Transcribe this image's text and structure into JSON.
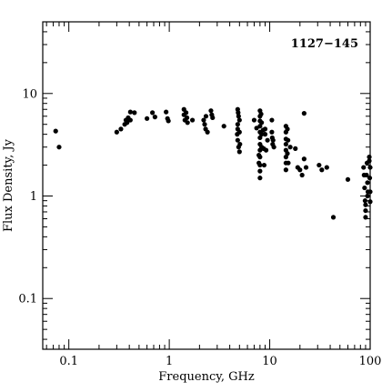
{
  "chart_data": {
    "type": "scatter",
    "title": "1127−145",
    "xlabel": "Frequency, GHz",
    "ylabel": "Flux Density, Jy",
    "xscale": "log",
    "yscale": "log",
    "xlim": [
      0.055,
      100
    ],
    "ylim": [
      0.032,
      50
    ],
    "x_ticks": [
      {
        "value": 0.1,
        "label": "0.1"
      },
      {
        "value": 1,
        "label": "1"
      },
      {
        "value": 10,
        "label": "10"
      },
      {
        "value": 100,
        "label": "100"
      }
    ],
    "y_ticks": [
      {
        "value": 0.1,
        "label": "0.1"
      },
      {
        "value": 1,
        "label": "1"
      },
      {
        "value": 10,
        "label": "10"
      }
    ],
    "title_position": "top-right",
    "grid": false,
    "marker_color": "#000000",
    "series": [
      {
        "points": [
          [
            0.074,
            4.3
          ],
          [
            0.08,
            3.0
          ],
          [
            0.3,
            4.2
          ],
          [
            0.33,
            4.5
          ],
          [
            0.36,
            5.0
          ],
          [
            0.37,
            5.5
          ],
          [
            0.38,
            5.2
          ],
          [
            0.39,
            5.8
          ],
          [
            0.41,
            6.6
          ],
          [
            0.41,
            5.5
          ],
          [
            0.45,
            6.5
          ],
          [
            0.6,
            5.7
          ],
          [
            0.68,
            6.5
          ],
          [
            0.72,
            5.9
          ],
          [
            0.93,
            6.6
          ],
          [
            0.96,
            5.7
          ],
          [
            0.98,
            5.4
          ],
          [
            1.4,
            7.0
          ],
          [
            1.4,
            6.2
          ],
          [
            1.43,
            5.5
          ],
          [
            1.47,
            6.5
          ],
          [
            1.5,
            5.8
          ],
          [
            1.52,
            5.2
          ],
          [
            1.7,
            5.5
          ],
          [
            2.2,
            5.5
          ],
          [
            2.25,
            5.0
          ],
          [
            2.3,
            4.5
          ],
          [
            2.32,
            6.0
          ],
          [
            2.4,
            4.2
          ],
          [
            2.6,
            6.8
          ],
          [
            2.65,
            6.2
          ],
          [
            2.7,
            5.8
          ],
          [
            3.5,
            4.8
          ],
          [
            4.8,
            7.0
          ],
          [
            4.85,
            6.5
          ],
          [
            4.9,
            6.0
          ],
          [
            4.8,
            5.0
          ],
          [
            4.8,
            4.5
          ],
          [
            4.75,
            4.0
          ],
          [
            4.8,
            3.5
          ],
          [
            4.9,
            3.0
          ],
          [
            5.0,
            5.5
          ],
          [
            5.0,
            4.2
          ],
          [
            5.05,
            3.2
          ],
          [
            5.0,
            2.7
          ],
          [
            7.0,
            5.5
          ],
          [
            7.4,
            4.6
          ],
          [
            7.8,
            2.5
          ],
          [
            7.8,
            2.1
          ],
          [
            8.0,
            6.8
          ],
          [
            8.0,
            6.0
          ],
          [
            8.0,
            5.4
          ],
          [
            8.0,
            4.8
          ],
          [
            8.0,
            4.2
          ],
          [
            8.0,
            3.7
          ],
          [
            8.0,
            3.2
          ],
          [
            8.0,
            2.8
          ],
          [
            8.0,
            2.4
          ],
          [
            8.0,
            2.0
          ],
          [
            8.0,
            1.75
          ],
          [
            8.0,
            1.5
          ],
          [
            8.2,
            6.3
          ],
          [
            8.3,
            5.2
          ],
          [
            8.3,
            4.0
          ],
          [
            8.3,
            3.0
          ],
          [
            8.6,
            4.4
          ],
          [
            8.7,
            2.9
          ],
          [
            8.8,
            2.0
          ],
          [
            9.0,
            4.5
          ],
          [
            9.0,
            4.0
          ],
          [
            9.2,
            2.8
          ],
          [
            9.5,
            3.5
          ],
          [
            10.5,
            5.5
          ],
          [
            10.5,
            4.2
          ],
          [
            10.6,
            3.7
          ],
          [
            10.7,
            3.2
          ],
          [
            11.0,
            3.0
          ],
          [
            10.8,
            3.5
          ],
          [
            14.5,
            4.8
          ],
          [
            14.5,
            4.2
          ],
          [
            14.5,
            3.6
          ],
          [
            14.5,
            3.2
          ],
          [
            14.5,
            2.8
          ],
          [
            14.5,
            2.4
          ],
          [
            14.5,
            2.1
          ],
          [
            14.5,
            1.8
          ],
          [
            15.0,
            4.5
          ],
          [
            15.2,
            3.5
          ],
          [
            15.0,
            2.6
          ],
          [
            15.3,
            2.1
          ],
          [
            16.0,
            3.0
          ],
          [
            18.0,
            2.9
          ],
          [
            19.0,
            1.9
          ],
          [
            20.0,
            1.8
          ],
          [
            21.0,
            1.6
          ],
          [
            22.0,
            6.4
          ],
          [
            22.0,
            2.3
          ],
          [
            23.0,
            1.9
          ],
          [
            31.0,
            2.0
          ],
          [
            33.0,
            1.8
          ],
          [
            37.0,
            1.9
          ],
          [
            43.0,
            0.62
          ],
          [
            60.0,
            1.45
          ],
          [
            86.0,
            1.9
          ],
          [
            87.0,
            1.6
          ],
          [
            88.0,
            1.2
          ],
          [
            89.0,
            0.9
          ],
          [
            90.0,
            0.82
          ],
          [
            90.0,
            0.72
          ],
          [
            90.0,
            0.62
          ],
          [
            92.0,
            1.6
          ],
          [
            93.0,
            2.1
          ],
          [
            94.0,
            1.35
          ],
          [
            94.0,
            1.0
          ],
          [
            95.0,
            1.1
          ],
          [
            98.0,
            2.2
          ],
          [
            98.0,
            2.4
          ],
          [
            99.0,
            1.5
          ],
          [
            100.0,
            1.9
          ],
          [
            100.0,
            0.88
          ],
          [
            100.0,
            1.1
          ]
        ]
      }
    ]
  }
}
